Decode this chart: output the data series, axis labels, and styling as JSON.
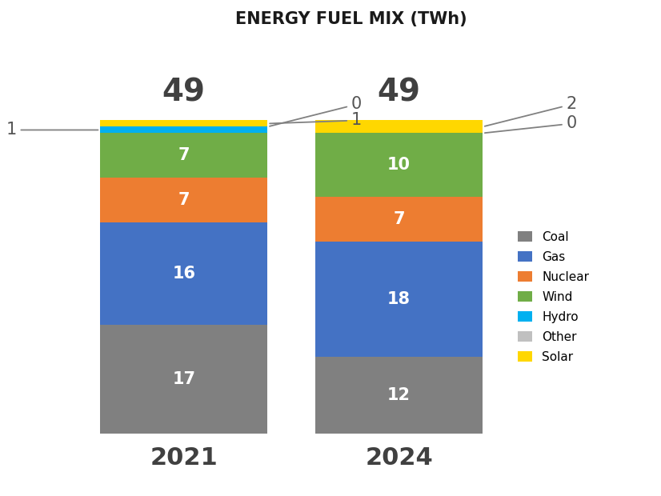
{
  "title": "ENERGY FUEL MIX (TWh)",
  "years": [
    "2021",
    "2024"
  ],
  "totals": [
    49,
    49
  ],
  "categories": [
    "Coal",
    "Gas",
    "Nuclear",
    "Wind",
    "Hydro",
    "Other",
    "Solar"
  ],
  "colors": {
    "Coal": "#808080",
    "Gas": "#4472C4",
    "Nuclear": "#ED7D31",
    "Wind": "#70AD47",
    "Hydro": "#00B0F0",
    "Other": "#C0C0C0",
    "Solar": "#FFD700"
  },
  "values_2021": {
    "Coal": 17,
    "Gas": 16,
    "Nuclear": 7,
    "Wind": 7,
    "Hydro": 1,
    "Other": 0,
    "Solar": 1
  },
  "values_2024": {
    "Coal": 12,
    "Gas": 18,
    "Nuclear": 7,
    "Wind": 10,
    "Hydro": 0,
    "Other": 0,
    "Solar": 2
  },
  "bar_width": 0.28,
  "bar_positions": [
    0.22,
    0.58
  ],
  "background_color": "#FFFFFF",
  "title_fontsize": 15,
  "total_fontsize": 28,
  "year_fontsize": 22,
  "label_fontsize": 15,
  "legend_fontsize": 11,
  "xlim": [
    0,
    1.0
  ],
  "ylim": [
    -8,
    62
  ]
}
